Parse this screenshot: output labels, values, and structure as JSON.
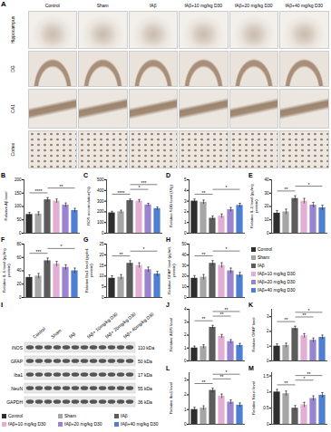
{
  "panel_a": {
    "label": "A",
    "columns": [
      "Control",
      "Sham",
      "fAβ",
      "fAβ+10 mg/kg D30",
      "fAβ+20 mg/kg D30",
      "fAβ+40 mg/kg D30"
    ],
    "rows": [
      "Hippocampus",
      "DG",
      "CA1",
      "Cortex"
    ]
  },
  "blot": {
    "label": "I",
    "lanes": [
      "Control",
      "Sham",
      "fAβ",
      "fAβ+ 10mg/kg D30",
      "fAβ+ 20mg/kg D30",
      "fAβ+ 40mg/kg D30"
    ],
    "proteins": [
      {
        "name": "iNOS",
        "size": "110 kDa"
      },
      {
        "name": "GFAP",
        "size": "50 kDa"
      },
      {
        "name": "Iba1",
        "size": "17 kDa"
      },
      {
        "name": "NeuN",
        "size": "55 kDa"
      },
      {
        "name": "GAPDH",
        "size": "36 kDa"
      }
    ]
  },
  "chart_data": [
    {
      "type": "bar",
      "title": "B",
      "ylabel": "Relative Aβ level",
      "categories": [
        "Control",
        "Sham",
        "fAβ",
        "fAβ+10 mg/kg D30",
        "fAβ+20 mg/kg D30",
        "fAβ+40 mg/kg D30"
      ],
      "values": [
        70,
        72,
        125,
        120,
        105,
        85
      ],
      "errors": [
        8,
        8,
        8,
        8,
        8,
        8
      ],
      "colors": [
        "#2e2e2e",
        "#a6a6a6",
        "#5c5c5c",
        "#e3aed3",
        "#9b84cf",
        "#4f7fd1"
      ],
      "ylim": [
        0,
        200
      ],
      "yticks": [
        0,
        50,
        100,
        150,
        200
      ],
      "tick_labels": "y",
      "significance": [
        {
          "from": 0,
          "to": 2,
          "label": "****"
        },
        {
          "from": 2,
          "to": 5,
          "label": "**"
        }
      ]
    },
    {
      "type": "bar",
      "title": "C",
      "ylabel": "ROS accumulation(%)",
      "categories": [
        "Control",
        "Sham",
        "fAβ",
        "fAβ+10 mg/kg D30",
        "fAβ+20 mg/kg D30",
        "fAβ+40 mg/kg D30"
      ],
      "values": [
        190,
        200,
        305,
        300,
        265,
        230
      ],
      "errors": [
        15,
        15,
        15,
        15,
        15,
        15
      ],
      "colors": [
        "#2e2e2e",
        "#a6a6a6",
        "#5c5c5c",
        "#e3aed3",
        "#9b84cf",
        "#4f7fd1"
      ],
      "ylim": [
        0,
        500
      ],
      "yticks": [
        0,
        100,
        200,
        300,
        400,
        500
      ],
      "tick_labels": "y",
      "significance": [
        {
          "from": 0,
          "to": 2,
          "label": "****"
        },
        {
          "from": 2,
          "to": 4,
          "label": "*"
        },
        {
          "from": 2,
          "to": 5,
          "label": "***"
        }
      ]
    },
    {
      "type": "bar",
      "title": "D",
      "ylabel": "Relative SOD level (U/g)",
      "categories": [
        "Control",
        "Sham",
        "fAβ",
        "fAβ+10 mg/kg D30",
        "fAβ+20 mg/kg D30",
        "fAβ+40 mg/kg D30"
      ],
      "values": [
        3.0,
        2.9,
        1.4,
        1.6,
        2.2,
        2.6
      ],
      "errors": [
        0.2,
        0.2,
        0.2,
        0.2,
        0.2,
        0.2
      ],
      "colors": [
        "#2e2e2e",
        "#a6a6a6",
        "#5c5c5c",
        "#e3aed3",
        "#9b84cf",
        "#4f7fd1"
      ],
      "ylim": [
        0,
        5
      ],
      "yticks": [
        0,
        1,
        2,
        3,
        4,
        5
      ],
      "tick_labels": "y",
      "significance": [
        {
          "from": 0,
          "to": 2,
          "label": "**"
        },
        {
          "from": 2,
          "to": 5,
          "label": "*"
        }
      ]
    },
    {
      "type": "bar",
      "title": "E",
      "ylabel": "Relative IL-1 level (pg/mg protein)",
      "categories": [
        "Control",
        "Sham",
        "fAβ",
        "fAβ+10 mg/kg D30",
        "fAβ+20 mg/kg D30",
        "fAβ+40 mg/kg D30"
      ],
      "values": [
        15,
        16,
        26,
        24,
        21,
        19
      ],
      "errors": [
        2,
        2,
        2,
        2,
        2,
        2
      ],
      "colors": [
        "#2e2e2e",
        "#a6a6a6",
        "#5c5c5c",
        "#e3aed3",
        "#9b84cf",
        "#4f7fd1"
      ],
      "ylim": [
        0,
        40
      ],
      "yticks": [
        0,
        10,
        20,
        30,
        40
      ],
      "tick_labels": "y",
      "significance": [
        {
          "from": 0,
          "to": 2,
          "label": "**"
        },
        {
          "from": 2,
          "to": 5,
          "label": "*"
        }
      ]
    },
    {
      "type": "bar",
      "title": "F",
      "ylabel": "Relative IL-6 level (pg/mg protein)",
      "categories": [
        "Control",
        "Sham",
        "fAβ",
        "fAβ+10 mg/kg D30",
        "fAβ+20 mg/kg D30",
        "fAβ+40 mg/kg D30"
      ],
      "values": [
        30,
        32,
        55,
        50,
        45,
        40
      ],
      "errors": [
        4,
        4,
        4,
        4,
        4,
        4
      ],
      "colors": [
        "#2e2e2e",
        "#a6a6a6",
        "#5c5c5c",
        "#e3aed3",
        "#9b84cf",
        "#4f7fd1"
      ],
      "ylim": [
        0,
        80
      ],
      "yticks": [
        0,
        20,
        40,
        60,
        80
      ],
      "tick_labels": "y",
      "significance": [
        {
          "from": 0,
          "to": 2,
          "label": "***"
        },
        {
          "from": 2,
          "to": 5,
          "label": "*"
        }
      ]
    },
    {
      "type": "bar",
      "title": "G",
      "ylabel": "Relative Iba1 level (pg/mL protein)",
      "categories": [
        "Control",
        "Sham",
        "fAβ",
        "fAβ+10 mg/kg D30",
        "fAβ+20 mg/kg D30",
        "fAβ+40 mg/kg D30"
      ],
      "values": [
        9,
        9.5,
        16,
        15,
        13,
        11
      ],
      "errors": [
        1.2,
        1.2,
        1.2,
        1.2,
        1.2,
        1.2
      ],
      "colors": [
        "#2e2e2e",
        "#a6a6a6",
        "#5c5c5c",
        "#e3aed3",
        "#9b84cf",
        "#4f7fd1"
      ],
      "ylim": [
        0,
        25
      ],
      "yticks": [
        0,
        5,
        10,
        15,
        20,
        25
      ],
      "tick_labels": "y",
      "significance": [
        {
          "from": 0,
          "to": 2,
          "label": "**"
        },
        {
          "from": 2,
          "to": 5,
          "label": "*"
        }
      ]
    },
    {
      "type": "bar",
      "title": "H",
      "ylabel": "Relative GFAP level (pg/mL protein)",
      "categories": [
        "Control",
        "Sham",
        "fAβ",
        "fAβ+10 mg/kg D30",
        "fAβ+20 mg/kg D30",
        "fAβ+40 mg/kg D30"
      ],
      "values": [
        18,
        19,
        32,
        30,
        25,
        21
      ],
      "errors": [
        2.5,
        2.5,
        2.5,
        2.5,
        2.5,
        2.5
      ],
      "colors": [
        "#2e2e2e",
        "#a6a6a6",
        "#5c5c5c",
        "#e3aed3",
        "#9b84cf",
        "#4f7fd1"
      ],
      "ylim": [
        0,
        50
      ],
      "yticks": [
        0,
        10,
        20,
        30,
        40,
        50
      ],
      "tick_labels": "y",
      "significance": [
        {
          "from": 0,
          "to": 2,
          "label": "**"
        },
        {
          "from": 2,
          "to": 5,
          "label": "*"
        }
      ]
    },
    {
      "type": "bar",
      "title": "J",
      "ylabel": "Relative iNOS level",
      "categories": [
        "Control",
        "Sham",
        "fAβ",
        "fAβ+10 mg/kg D30",
        "fAβ+20 mg/kg D30",
        "fAβ+40 mg/kg D30"
      ],
      "values": [
        1.0,
        1.1,
        2.6,
        1.9,
        1.5,
        1.2
      ],
      "errors": [
        0.15,
        0.15,
        0.15,
        0.15,
        0.15,
        0.15
      ],
      "colors": [
        "#2e2e2e",
        "#a6a6a6",
        "#5c5c5c",
        "#e3aed3",
        "#9b84cf",
        "#4f7fd1"
      ],
      "ylim": [
        0,
        4
      ],
      "yticks": [
        0,
        1,
        2,
        3,
        4
      ],
      "tick_labels": "y",
      "significance": [
        {
          "from": 0,
          "to": 2,
          "label": "**"
        },
        {
          "from": 2,
          "to": 4,
          "label": "**"
        },
        {
          "from": 2,
          "to": 5,
          "label": "**"
        }
      ]
    },
    {
      "type": "bar",
      "title": "K",
      "ylabel": "Relative GFAP level",
      "categories": [
        "Control",
        "Sham",
        "fAβ",
        "fAβ+10 mg/kg D30",
        "fAβ+20 mg/kg D30",
        "fAβ+40 mg/kg D30"
      ],
      "values": [
        1.0,
        1.05,
        2.2,
        1.7,
        1.4,
        1.6
      ],
      "errors": [
        0.15,
        0.15,
        0.15,
        0.15,
        0.15,
        0.15
      ],
      "colors": [
        "#2e2e2e",
        "#a6a6a6",
        "#5c5c5c",
        "#e3aed3",
        "#9b84cf",
        "#4f7fd1"
      ],
      "ylim": [
        0,
        3.5
      ],
      "yticks": [
        0,
        1,
        2,
        3
      ],
      "tick_labels": "y",
      "significance": [
        {
          "from": 0,
          "to": 2,
          "label": "**"
        },
        {
          "from": 2,
          "to": 4,
          "label": "**"
        },
        {
          "from": 2,
          "to": 5,
          "label": "*"
        }
      ]
    },
    {
      "type": "bar",
      "title": "L",
      "ylabel": "Relative Iba1 level",
      "categories": [
        "Control",
        "Sham",
        "fAβ",
        "fAβ+10 mg/kg D30",
        "fAβ+20 mg/kg D30",
        "fAβ+40 mg/kg D30"
      ],
      "values": [
        1.0,
        1.1,
        2.3,
        1.9,
        1.5,
        1.3
      ],
      "errors": [
        0.15,
        0.15,
        0.15,
        0.15,
        0.15,
        0.15
      ],
      "colors": [
        "#2e2e2e",
        "#a6a6a6",
        "#5c5c5c",
        "#e3aed3",
        "#9b84cf",
        "#4f7fd1"
      ],
      "ylim": [
        0,
        3.5
      ],
      "yticks": [
        0,
        1,
        2,
        3
      ],
      "tick_labels": "y",
      "significance": [
        {
          "from": 0,
          "to": 2,
          "label": "**"
        },
        {
          "from": 2,
          "to": 4,
          "label": "**"
        },
        {
          "from": 2,
          "to": 5,
          "label": "*"
        }
      ]
    },
    {
      "type": "bar",
      "title": "M",
      "ylabel": "Relative Neun level",
      "categories": [
        "Control",
        "Sham",
        "fAβ",
        "fAβ+10 mg/kg D30",
        "fAβ+20 mg/kg D30",
        "fAβ+40 mg/kg D30"
      ],
      "values": [
        1.0,
        0.95,
        0.5,
        0.6,
        0.8,
        0.9
      ],
      "errors": [
        0.08,
        0.08,
        0.08,
        0.08,
        0.08,
        0.08
      ],
      "colors": [
        "#2e2e2e",
        "#a6a6a6",
        "#5c5c5c",
        "#e3aed3",
        "#9b84cf",
        "#4f7fd1"
      ],
      "ylim": [
        0,
        1.6
      ],
      "yticks": [
        0,
        0.5,
        1,
        1.5
      ],
      "tick_labels": "y",
      "significance": [
        {
          "from": 0,
          "to": 2,
          "label": "**"
        },
        {
          "from": 2,
          "to": 4,
          "label": "*"
        },
        {
          "from": 2,
          "to": 5,
          "label": "**"
        }
      ]
    }
  ]
}
